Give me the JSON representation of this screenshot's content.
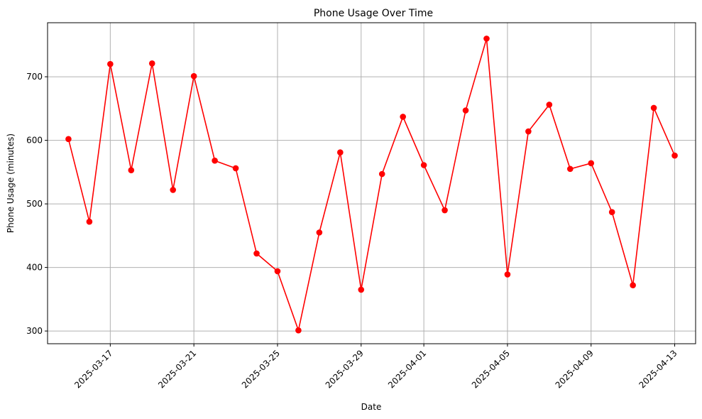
{
  "chart_data": {
    "type": "line",
    "title": "Phone Usage Over Time",
    "xlabel": "Date",
    "ylabel": "Phone Usage (minutes)",
    "grid": true,
    "legend": "none",
    "line_color": "#ff0000",
    "grid_color": "#b0b0b0",
    "ylim": [
      280,
      785
    ],
    "xlim": [
      "2025-03-14",
      "2025-04-14"
    ],
    "yticks": [
      300,
      400,
      500,
      600,
      700
    ],
    "xticks": [
      "2025-03-17",
      "2025-03-21",
      "2025-03-25",
      "2025-03-29",
      "2025-04-01",
      "2025-04-05",
      "2025-04-09",
      "2025-04-13"
    ],
    "series": [
      {
        "x": [
          "2025-03-15",
          "2025-03-16",
          "2025-03-17",
          "2025-03-18",
          "2025-03-19",
          "2025-03-20",
          "2025-03-21",
          "2025-03-22",
          "2025-03-23",
          "2025-03-24",
          "2025-03-25",
          "2025-03-26",
          "2025-03-27",
          "2025-03-28",
          "2025-03-29",
          "2025-03-30",
          "2025-03-31",
          "2025-04-01",
          "2025-04-02",
          "2025-04-03",
          "2025-04-04",
          "2025-04-05",
          "2025-04-06",
          "2025-04-07",
          "2025-04-08",
          "2025-04-09",
          "2025-04-10",
          "2025-04-11",
          "2025-04-12",
          "2025-04-13"
        ],
        "values": [
          602,
          472,
          720,
          553,
          721,
          522,
          701,
          568,
          556,
          422,
          394,
          301,
          455,
          581,
          365,
          547,
          637,
          561,
          490,
          647,
          760,
          389,
          614,
          656,
          555,
          564,
          487,
          372,
          651,
          576
        ]
      }
    ]
  }
}
